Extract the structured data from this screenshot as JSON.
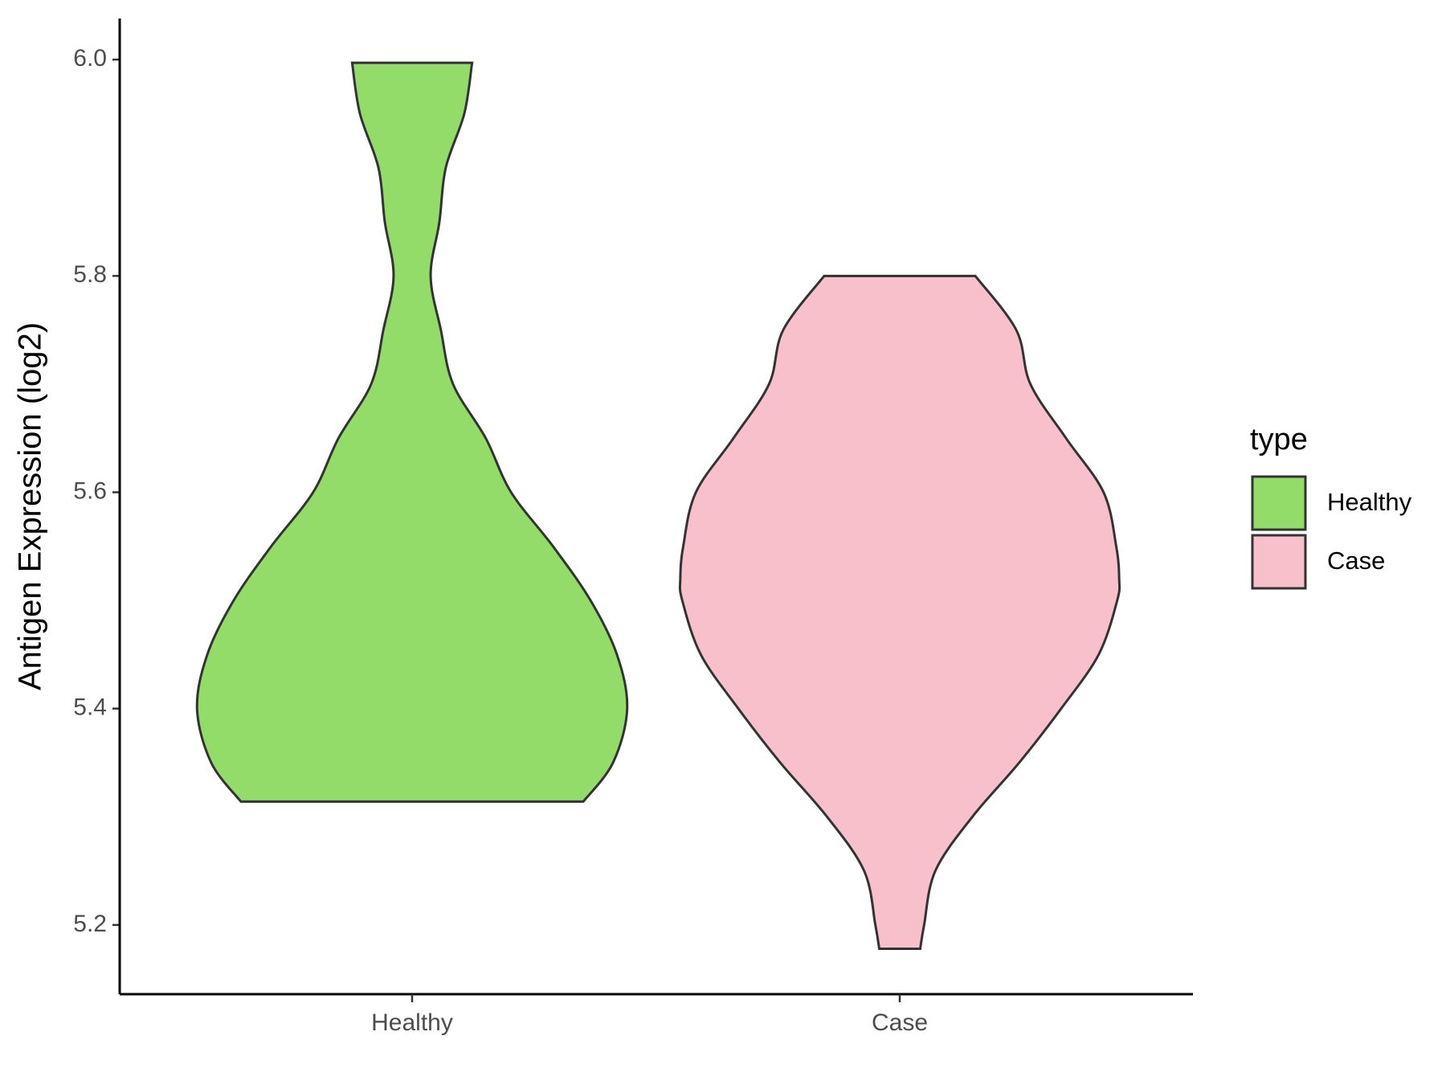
{
  "chart_data": {
    "type": "violin",
    "y_label": "Antigen Expression (log2)",
    "categories": [
      "Healthy",
      "Case"
    ],
    "legend_title": "type",
    "legend_position": "right",
    "ylim": [
      5.136,
      6.038
    ],
    "yticks": [
      {
        "value": 5.2,
        "label": "5.2"
      },
      {
        "value": 5.4,
        "label": "5.4"
      },
      {
        "value": 5.6,
        "label": "5.6"
      },
      {
        "value": 5.8,
        "label": "5.8"
      },
      {
        "value": 6.0,
        "label": "6.0"
      }
    ],
    "series": [
      {
        "name": "Healthy",
        "color": "#93dc6a",
        "y": [
          5.997,
          5.95,
          5.9,
          5.85,
          5.8,
          5.75,
          5.7,
          5.65,
          5.6,
          5.55,
          5.5,
          5.45,
          5.4,
          5.35,
          5.314
        ],
        "half_width": [
          0.123,
          0.107,
          0.069,
          0.056,
          0.038,
          0.059,
          0.084,
          0.151,
          0.203,
          0.289,
          0.366,
          0.42,
          0.441,
          0.412,
          0.351
        ]
      },
      {
        "name": "Case",
        "color": "#f7c0cb",
        "y": [
          5.8,
          5.75,
          5.7,
          5.65,
          5.6,
          5.55,
          5.52,
          5.5,
          5.45,
          5.4,
          5.35,
          5.3,
          5.25,
          5.2,
          5.178
        ],
        "half_width": [
          0.155,
          0.239,
          0.268,
          0.341,
          0.418,
          0.444,
          0.45,
          0.446,
          0.408,
          0.331,
          0.245,
          0.149,
          0.073,
          0.05,
          0.042
        ]
      }
    ]
  }
}
